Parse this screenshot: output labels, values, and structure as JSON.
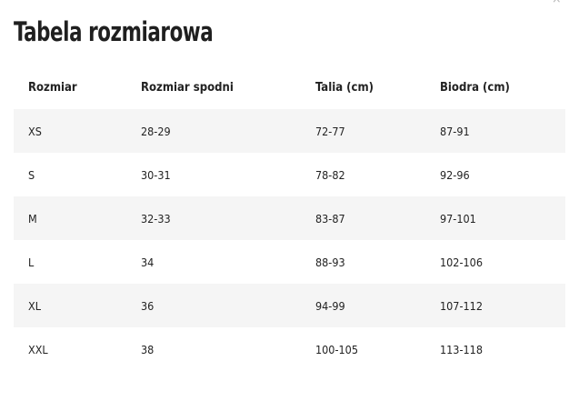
{
  "close_icon": "×",
  "title": "Tabela rozmiarowa",
  "table": {
    "headers": [
      "Rozmiar",
      "Rozmiar spodni",
      "Talia (cm)",
      "Biodra (cm)"
    ],
    "rows": [
      [
        "XS",
        "28-29",
        "72-77",
        "87-91"
      ],
      [
        "S",
        "30-31",
        "78-82",
        "92-96"
      ],
      [
        "M",
        "32-33",
        "83-87",
        "97-101"
      ],
      [
        "L",
        "34",
        "88-93",
        "102-106"
      ],
      [
        "XL",
        "36",
        "94-99",
        "107-112"
      ],
      [
        "XXL",
        "38",
        "100-105",
        "113-118"
      ]
    ]
  }
}
